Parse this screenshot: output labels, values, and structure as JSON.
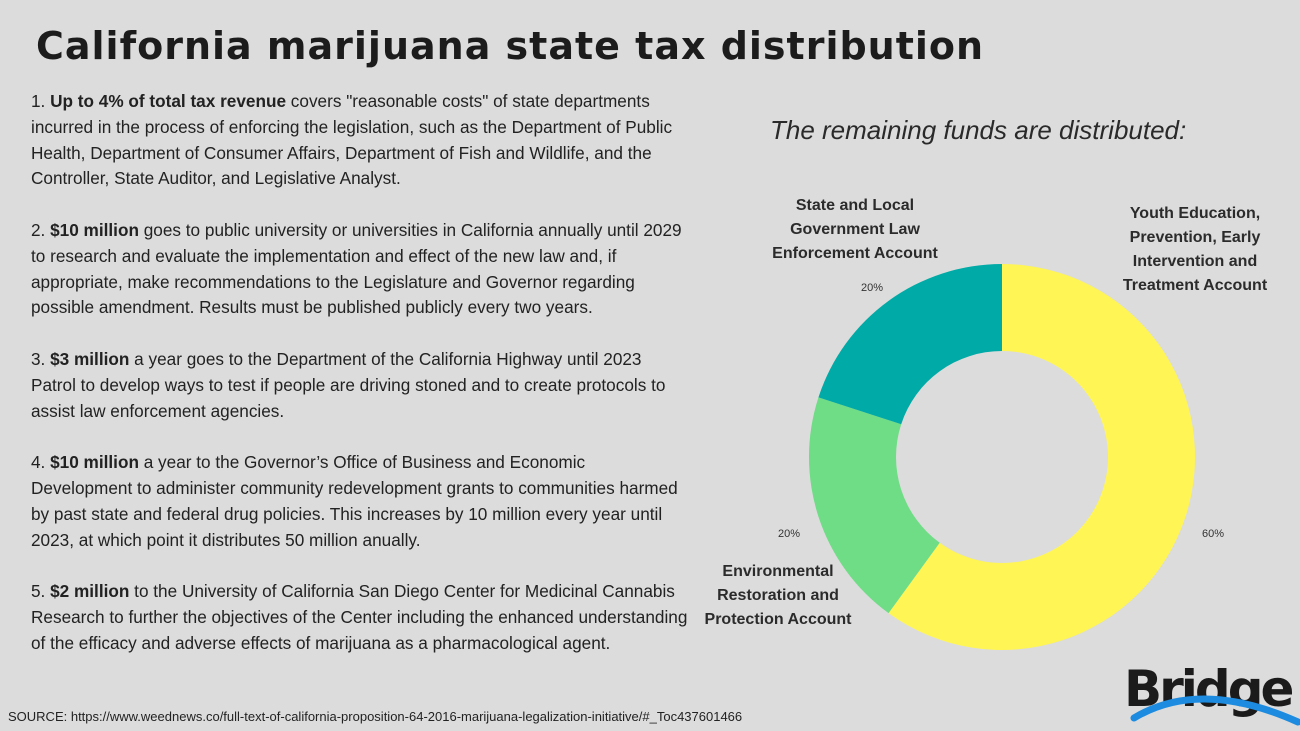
{
  "title": "California marijuana state tax distribution",
  "items": [
    {
      "num": "1. ",
      "bold": "Up to 4% of total tax revenue",
      "text": " covers \"reasonable costs\" of state departments incurred in the process of enforcing the legislation, such as the Department of Public Health, Department of Consumer Affairs, Department of Fish and Wildlife, and the Controller, State Auditor, and Legislative Analyst."
    },
    {
      "num": "2. ",
      "bold": "$10 million",
      "text": " goes to public university or universities in California annually until 2029 to research and evaluate the implementation and effect of the new law and, if appropriate, make recommendations to the Legislature and Governor regarding possible amendment. Results must be published publicly every two years."
    },
    {
      "num": "3. ",
      "bold": "$3 million",
      "text": " a year goes to the Department of the California Highway until 2023 Patrol to develop ways to test if people are driving stoned and to create protocols to assist law enforcement agencies."
    },
    {
      "num": "4. ",
      "bold": "$10 million",
      "text": " a year to the Governor’s Office of Business and Economic Development  to administer community redevelopment grants to communities harmed by past state and federal drug policies. This increases by 10 million every year until 2023, at which point it distributes 50 million anually."
    },
    {
      "num": "5. ",
      "bold": "$2 million",
      "text": " to the University of California San Diego Center for Medicinal Cannabis Research to further the objectives of the Center including the enhanced understanding of the efficacy and adverse effects of marijuana as a pharmacological agent."
    }
  ],
  "source": "SOURCE: https://www.weednews.co/full-text-of-california-proposition-64-2016-marijuana-legalization-initiative/#_Toc437601466",
  "logo_text": "Bridge",
  "chart_data": {
    "type": "pie",
    "donut": true,
    "title": "The remaining funds are distributed:",
    "slices": [
      {
        "name": "Youth Education, Prevention, Early Intervention and Treatment Account",
        "lines": [
          "Youth Education,",
          "Prevention, Early",
          "Intervention and",
          "Treatment Account"
        ],
        "value": 60,
        "label": "60%",
        "color": "#fff555"
      },
      {
        "name": "Environmental Restoration and Protection Account",
        "lines": [
          "Environmental",
          "Restoration and",
          "Protection Account"
        ],
        "value": 20,
        "label": "20%",
        "color": "#6fdc86"
      },
      {
        "name": "State and Local Government Law Enforcement Account",
        "lines": [
          "State and Local",
          "Government Law",
          "Enforcement Account"
        ],
        "value": 20,
        "label": "20%",
        "color": "#00aaa6"
      }
    ]
  }
}
